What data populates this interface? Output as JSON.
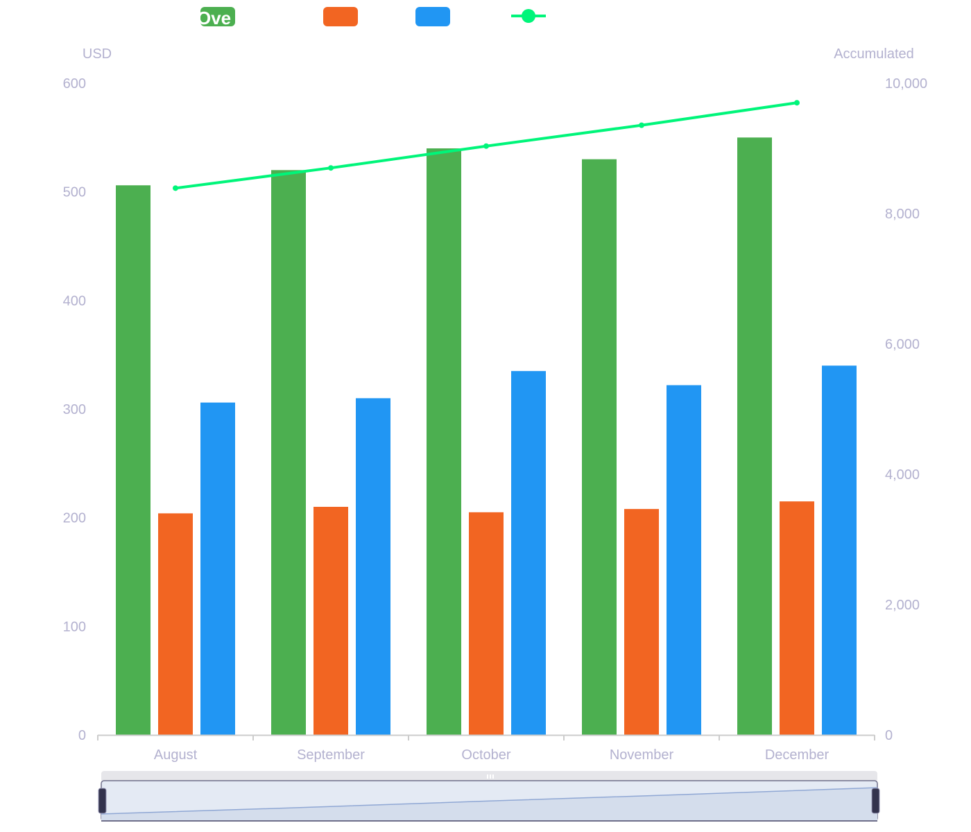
{
  "chart_data": {
    "type": "bar",
    "title": "",
    "categories": [
      "August",
      "September",
      "October",
      "November",
      "December"
    ],
    "series": [
      {
        "name": "Ove",
        "type": "bar",
        "axis": "left",
        "color": "#4caf50",
        "values": [
          506,
          520,
          540,
          530,
          550
        ]
      },
      {
        "name": "",
        "type": "bar",
        "axis": "left",
        "color": "#f26522",
        "values": [
          204,
          210,
          205,
          208,
          215
        ]
      },
      {
        "name": "",
        "type": "bar",
        "axis": "left",
        "color": "#2196f3",
        "values": [
          306,
          310,
          335,
          322,
          340
        ]
      },
      {
        "name": "",
        "type": "line",
        "axis": "right",
        "color": "#00f57a",
        "values": [
          8390,
          8700,
          9035,
          9355,
          9700
        ]
      }
    ],
    "legend": {
      "placement": "top-center",
      "items": [
        {
          "label": "Ove",
          "swatch": "rect",
          "color": "#4caf50"
        },
        {
          "label": "",
          "swatch": "rect",
          "color": "#f26522"
        },
        {
          "label": "",
          "swatch": "rect",
          "color": "#2196f3"
        },
        {
          "label": "",
          "swatch": "line-circle",
          "color": "#00f57a"
        }
      ]
    },
    "y_left": {
      "label": "USD",
      "min": 0,
      "max": 600,
      "ticks": [
        "0",
        "100",
        "200",
        "300",
        "400",
        "500",
        "600"
      ]
    },
    "y_right": {
      "label": "Accumulated",
      "min": 0,
      "max": 10000,
      "ticks": [
        "0",
        "2,000",
        "4,000",
        "6,000",
        "8,000",
        "10,000"
      ]
    },
    "xlabel": "",
    "grid": false,
    "data_zoom": {
      "start_percent": 0,
      "end_percent": 100,
      "preview_series": "Accumulated"
    }
  },
  "colors": {
    "axis_text": "#b3b1cf",
    "axis_line": "#cccccc",
    "zoom_background": "#e6e6ea",
    "zoom_fill": "#e4eaf4",
    "zoom_handle": "#33334d"
  }
}
